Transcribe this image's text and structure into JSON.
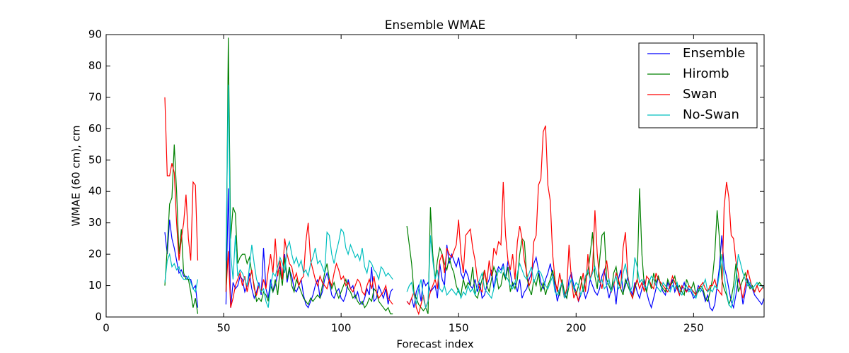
{
  "chart_data": {
    "type": "line",
    "title": "Ensemble WMAE",
    "x_label": "Forecast index",
    "y_label": "WMAE (60 cm), cm",
    "xlim": [
      0,
      280
    ],
    "xticks": [
      0,
      50,
      100,
      150,
      200,
      250
    ],
    "ylim": [
      0,
      90
    ],
    "yticks": [
      0,
      10,
      20,
      30,
      40,
      50,
      60,
      70,
      80,
      90
    ],
    "legend": "upper right",
    "x": [
      25,
      26,
      27,
      28,
      29,
      30,
      31,
      32,
      33,
      34,
      35,
      36,
      37,
      38,
      39,
      45,
      51,
      52,
      53,
      54,
      55,
      56,
      57,
      58,
      59,
      60,
      61,
      62,
      63,
      64,
      65,
      66,
      67,
      68,
      69,
      70,
      71,
      72,
      73,
      74,
      75,
      76,
      77,
      78,
      79,
      80,
      81,
      82,
      83,
      84,
      85,
      86,
      87,
      88,
      89,
      90,
      91,
      92,
      93,
      94,
      95,
      96,
      97,
      98,
      99,
      100,
      101,
      102,
      103,
      104,
      105,
      106,
      107,
      108,
      109,
      110,
      111,
      112,
      113,
      114,
      115,
      116,
      117,
      118,
      119,
      120,
      121,
      122,
      125,
      128,
      129,
      130,
      131,
      132,
      133,
      134,
      135,
      136,
      137,
      138,
      139,
      140,
      141,
      142,
      143,
      144,
      145,
      146,
      147,
      148,
      149,
      150,
      151,
      152,
      153,
      154,
      155,
      156,
      157,
      158,
      159,
      160,
      161,
      162,
      163,
      164,
      165,
      166,
      167,
      168,
      169,
      170,
      171,
      172,
      173,
      174,
      175,
      176,
      177,
      178,
      179,
      180,
      181,
      182,
      183,
      184,
      185,
      186,
      187,
      188,
      189,
      190,
      191,
      192,
      193,
      194,
      195,
      196,
      197,
      198,
      199,
      200,
      201,
      202,
      203,
      204,
      205,
      206,
      207,
      208,
      209,
      210,
      211,
      212,
      213,
      214,
      215,
      216,
      217,
      218,
      219,
      220,
      221,
      222,
      223,
      224,
      225,
      226,
      227,
      228,
      229,
      230,
      231,
      232,
      233,
      234,
      235,
      236,
      237,
      238,
      239,
      240,
      241,
      242,
      243,
      244,
      245,
      246,
      247,
      248,
      249,
      250,
      251,
      252,
      253,
      254,
      255,
      256,
      257,
      258,
      259,
      260,
      261,
      262,
      263,
      264,
      265,
      266,
      267,
      268,
      269,
      270,
      271,
      272,
      273,
      274,
      275,
      276,
      277,
      278,
      279,
      280,
      281
    ],
    "series": [
      {
        "name": "Ensemble",
        "color": "#0000ff",
        "values": [
          27,
          20,
          31,
          25,
          22,
          18,
          14,
          15,
          13,
          13,
          12,
          12,
          9,
          10,
          3,
          null,
          4,
          41,
          3,
          11,
          9,
          10,
          13,
          12,
          8,
          10,
          14,
          9,
          6,
          8,
          11,
          7,
          22,
          9,
          6,
          12,
          8,
          10,
          14,
          16,
          12,
          20,
          11,
          15,
          13,
          9,
          8,
          10,
          12,
          7,
          4,
          3,
          5,
          7,
          10,
          12,
          6,
          8,
          12,
          14,
          11,
          7,
          6,
          8,
          9,
          6,
          5,
          7,
          12,
          9,
          10,
          6,
          8,
          5,
          4,
          6,
          9,
          7,
          16,
          5,
          6,
          10,
          8,
          6,
          9,
          4,
          8,
          9,
          null,
          5,
          4,
          6,
          3,
          8,
          10,
          5,
          12,
          10,
          11,
          8,
          9,
          10,
          6,
          17,
          12,
          10,
          23,
          17,
          20,
          18,
          16,
          19,
          14,
          12,
          15,
          13,
          10,
          9,
          12,
          8,
          11,
          6,
          7,
          10,
          12,
          15,
          9,
          14,
          16,
          15,
          17,
          12,
          18,
          14,
          10,
          11,
          8,
          12,
          6,
          8,
          9,
          12,
          14,
          17,
          19,
          15,
          11,
          9,
          12,
          14,
          17,
          13,
          10,
          5,
          8,
          11,
          7,
          6,
          12,
          14,
          10,
          8,
          5,
          7,
          9,
          6,
          8,
          12,
          10,
          8,
          7,
          9,
          13,
          15,
          10,
          6,
          9,
          11,
          4,
          12,
          15,
          8,
          10,
          13,
          9,
          7,
          11,
          8,
          6,
          9,
          12,
          8,
          5,
          3,
          6,
          9,
          13,
          10,
          8,
          7,
          11,
          9,
          12,
          8,
          10,
          7,
          9,
          11,
          8,
          9,
          8,
          6,
          7,
          10,
          9,
          8,
          5,
          7,
          3,
          2,
          4,
          10,
          16,
          26,
          16,
          13,
          9,
          5,
          3,
          7,
          12,
          10,
          4,
          8,
          12,
          10,
          9,
          7,
          6,
          5,
          4,
          6,
          5
        ]
      },
      {
        "name": "Hiromb",
        "color": "#008000",
        "values": [
          10,
          22,
          36,
          38,
          55,
          40,
          20,
          28,
          14,
          12,
          12,
          8,
          3,
          6,
          1,
          null,
          8,
          89,
          25,
          35,
          33,
          17,
          19,
          20,
          20,
          17,
          19,
          14,
          10,
          5,
          6,
          5,
          8,
          7,
          5,
          10,
          8,
          12,
          7,
          15,
          10,
          19,
          12,
          16,
          10,
          8,
          12,
          10,
          8,
          6,
          5,
          4,
          6,
          5,
          6,
          7,
          6,
          10,
          14,
          17,
          12,
          9,
          11,
          8,
          6,
          8,
          10,
          12,
          9,
          8,
          6,
          7,
          5,
          4,
          5,
          3,
          4,
          6,
          5,
          9,
          8,
          5,
          4,
          3,
          2,
          3,
          1,
          1,
          null,
          29,
          23,
          17,
          8,
          6,
          4,
          3,
          2,
          3,
          1,
          35,
          20,
          12,
          18,
          22,
          20,
          17,
          15,
          19,
          16,
          14,
          10,
          8,
          7,
          12,
          9,
          11,
          10,
          16,
          7,
          6,
          9,
          12,
          15,
          10,
          8,
          12,
          16,
          14,
          9,
          10,
          14,
          12,
          16,
          8,
          11,
          9,
          12,
          20,
          25,
          24,
          13,
          9,
          7,
          12,
          10,
          14,
          8,
          11,
          7,
          10,
          12,
          15,
          11,
          9,
          7,
          12,
          8,
          6,
          10,
          12,
          9,
          7,
          10,
          13,
          8,
          12,
          14,
          20,
          27,
          13,
          9,
          18,
          26,
          27,
          12,
          10,
          8,
          14,
          16,
          11,
          9,
          7,
          12,
          10,
          8,
          6,
          9,
          12,
          41,
          20,
          10,
          8,
          12,
          9,
          14,
          11,
          13,
          10,
          9,
          8,
          12,
          10,
          11,
          13,
          9,
          10,
          8,
          7,
          12,
          10,
          9,
          11,
          7,
          8,
          10,
          9,
          6,
          5,
          8,
          12,
          20,
          34,
          25,
          12,
          9,
          7,
          4,
          6,
          10,
          17,
          8,
          10,
          12,
          14,
          11,
          9,
          10,
          8,
          10,
          11,
          10,
          9,
          10
        ]
      },
      {
        "name": "Swan",
        "color": "#ff0000",
        "values": [
          70,
          45,
          45,
          49,
          46,
          30,
          18,
          25,
          30,
          39,
          25,
          18,
          43,
          42,
          18,
          null,
          8,
          21,
          3,
          6,
          10,
          12,
          14,
          10,
          13,
          8,
          12,
          15,
          9,
          7,
          10,
          8,
          12,
          9,
          15,
          20,
          14,
          25,
          13,
          18,
          12,
          25,
          20,
          17,
          16,
          12,
          14,
          10,
          12,
          13,
          24,
          30,
          18,
          15,
          12,
          10,
          13,
          11,
          10,
          9,
          12,
          10,
          14,
          17,
          15,
          12,
          13,
          10,
          11,
          9,
          8,
          10,
          12,
          11,
          8,
          7,
          10,
          12,
          9,
          13,
          8,
          6,
          7,
          8,
          10,
          6,
          5,
          4,
          null,
          5,
          4,
          6,
          8,
          3,
          1,
          4,
          7,
          3,
          5,
          8,
          10,
          12,
          9,
          18,
          20,
          14,
          22,
          20,
          19,
          21,
          23,
          31,
          20,
          14,
          26,
          27,
          28,
          22,
          18,
          12,
          9,
          8,
          15,
          11,
          18,
          13,
          22,
          20,
          24,
          23,
          43,
          26,
          18,
          15,
          20,
          12,
          24,
          29,
          25,
          18,
          14,
          10,
          12,
          24,
          26,
          42,
          44,
          59,
          61,
          42,
          37,
          20,
          12,
          8,
          14,
          10,
          6,
          9,
          23,
          12,
          6,
          8,
          5,
          10,
          14,
          8,
          20,
          12,
          15,
          34,
          20,
          12,
          9,
          14,
          18,
          12,
          8,
          10,
          14,
          12,
          9,
          22,
          27,
          13,
          8,
          6,
          10,
          12,
          9,
          11,
          8,
          13,
          12,
          10,
          9,
          14,
          12,
          11,
          10,
          9,
          8,
          10,
          13,
          11,
          9,
          7,
          10,
          9,
          8,
          10,
          9,
          8,
          7,
          9,
          10,
          11,
          9,
          8,
          10,
          10,
          12,
          9,
          8,
          7,
          35,
          43,
          38,
          26,
          25,
          18,
          14,
          9,
          6,
          10,
          15,
          12,
          9,
          8,
          10,
          8,
          9,
          10,
          9
        ]
      },
      {
        "name": "No-Swan",
        "color": "#00bfbf",
        "values": [
          11,
          18,
          20,
          16,
          17,
          15,
          16,
          13,
          12,
          12,
          13,
          11,
          9,
          8,
          12,
          null,
          18,
          74,
          20,
          12,
          26,
          13,
          15,
          14,
          12,
          10,
          16,
          23,
          17,
          12,
          10,
          8,
          9,
          5,
          3,
          10,
          14,
          13,
          16,
          19,
          17,
          14,
          22,
          24,
          20,
          17,
          19,
          16,
          18,
          14,
          15,
          13,
          17,
          19,
          22,
          17,
          18,
          16,
          14,
          27,
          26,
          20,
          17,
          21,
          24,
          28,
          27,
          22,
          20,
          23,
          21,
          19,
          20,
          18,
          22,
          16,
          14,
          18,
          17,
          15,
          14,
          12,
          16,
          15,
          13,
          14,
          13,
          12,
          null,
          8,
          10,
          11,
          7,
          4,
          9,
          12,
          6,
          3,
          5,
          26,
          18,
          12,
          15,
          9,
          8,
          10,
          7,
          8,
          9,
          8,
          7,
          9,
          6,
          8,
          7,
          10,
          8,
          9,
          7,
          10,
          12,
          14,
          9,
          8,
          7,
          6,
          9,
          12,
          15,
          14,
          16,
          13,
          12,
          10,
          9,
          11,
          14,
          17,
          15,
          13,
          12,
          14,
          16,
          11,
          13,
          15,
          14,
          12,
          10,
          9,
          11,
          13,
          8,
          7,
          9,
          11,
          6,
          8,
          10,
          12,
          9,
          11,
          10,
          7,
          9,
          13,
          15,
          12,
          14,
          16,
          13,
          11,
          12,
          9,
          10,
          12,
          8,
          11,
          13,
          9,
          10,
          14,
          17,
          12,
          8,
          10,
          19,
          16,
          11,
          12,
          10,
          9,
          11,
          13,
          12,
          10,
          9,
          8,
          11,
          10,
          9,
          8,
          10,
          9,
          11,
          8,
          7,
          9,
          10,
          8,
          9,
          7,
          6,
          9,
          8,
          10,
          12,
          8,
          9,
          8,
          10,
          9,
          14,
          20,
          13,
          8,
          4,
          3,
          6,
          12,
          20,
          17,
          14,
          12,
          10,
          11,
          9,
          10,
          11,
          10,
          10,
          9,
          10
        ]
      }
    ]
  }
}
